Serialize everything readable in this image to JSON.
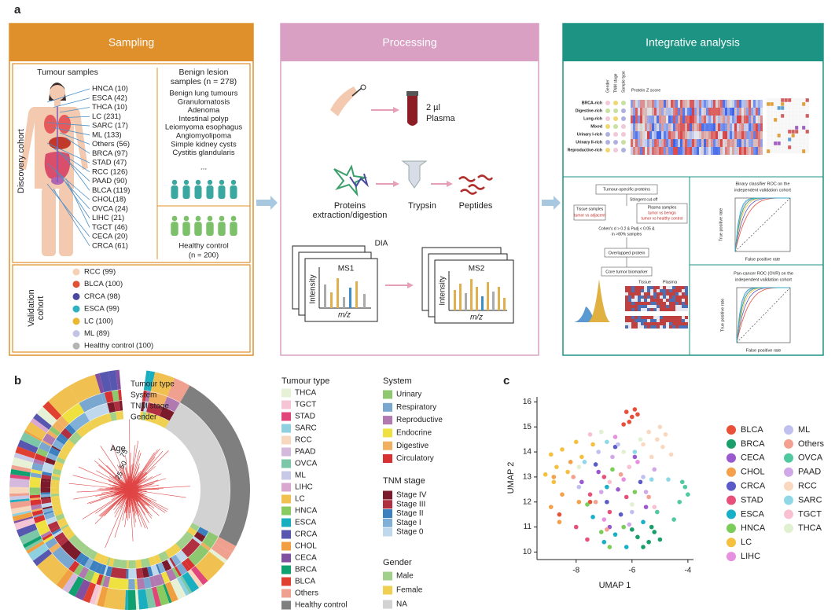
{
  "panel_a": {
    "label": "a",
    "sampling": {
      "header": "Sampling",
      "discovery_label": "Discovery cohort",
      "tumour_title": "Tumour samples",
      "tumour_samples": [
        "HNCA (10)",
        "ESCA (42)",
        "THCA (10)",
        "LC (231)",
        "SARC (17)",
        "ML (133)",
        "Others (56)",
        "BRCA (97)",
        "STAD (47)",
        "RCC (126)",
        "PAAD (90)",
        "BLCA (119)",
        "CHOL(18)",
        "OVCA (24)",
        "LIHC (21)",
        "TGCT (46)",
        "CECA (20)",
        "CRCA (61)"
      ],
      "benign_title": [
        "Benign lesion",
        "samples (n = 278)"
      ],
      "benign_samples": [
        "Benign lung tumours",
        "Granulomatosis",
        "Adenoma",
        "Intestinal polyp",
        "Leiomyoma esophagus",
        "Angiomyolipoma",
        "Simple kidney cysts",
        "Cystitis glandularis"
      ],
      "ellipsis": "...",
      "healthy": [
        "Healthy control",
        "(n = 200)"
      ],
      "validation_label": [
        "Validation",
        "cohort"
      ],
      "validation": [
        {
          "name": "RCC (99)",
          "color": "#f6cfb4"
        },
        {
          "name": "BLCA (100)",
          "color": "#e05232"
        },
        {
          "name": "CRCA (98)",
          "color": "#4b4aa0"
        },
        {
          "name": "ESCA (99)",
          "color": "#2fb1c2"
        },
        {
          "name": "LC (100)",
          "color": "#e9b830"
        },
        {
          "name": "ML (89)",
          "color": "#c3c3e6"
        },
        {
          "name": "Healthy control (100)",
          "color": "#b4b4b4"
        }
      ]
    },
    "processing": {
      "header": "Processing",
      "volume": "2 µl",
      "plasma": "Plasma",
      "proteins": [
        "Proteins",
        "extraction/digestion"
      ],
      "trypsin": "Trypsin",
      "peptides": "Peptides",
      "dia": "DIA",
      "ms1": "MS1",
      "ms2": "MS2",
      "intensity": "Intensity",
      "mz": "m/z"
    },
    "integrative": {
      "header": "Integrative analysis",
      "heatmap_title": "Protein Z score",
      "heatmap_columns": [
        "Gender",
        "TNM stage",
        "Sample type"
      ],
      "heatmap_rows": [
        "BRCA-rich",
        "Digestive-rich",
        "Lung-rich",
        "Mixed",
        "Urinary I-rich",
        "Urinary II-rich",
        "Reproductive-rich"
      ],
      "flow_start": "Tumour-specific proteins",
      "cutoff": "Stringent cut-off",
      "tissue_box": [
        "Tissue samples",
        "tumor vs adjacent"
      ],
      "plasma_box": [
        "Plasma samples",
        "tumor vs benign",
        "tumor vs healthy control"
      ],
      "criteria": [
        "Cohen's d > 0.2 & Padj < 0.05 &",
        "in >80% samples"
      ],
      "overlap": "Overlapped protein",
      "core": "Core tumor biomarker",
      "tissue": "Tissue",
      "plasma": "Plasma",
      "roc_binary_title": [
        "Binary classifier ROC on the",
        "independent validation cohort"
      ],
      "roc_pan_title": [
        "Pan-cancer ROC (OVR) on the",
        "independent validation cohort"
      ],
      "tpr": "True positive rate",
      "fpr": "False positive rate"
    }
  },
  "panel_b": {
    "label": "b",
    "rings": [
      "Tumour type",
      "System",
      "TNM stage",
      "Gender"
    ],
    "age_title": "Age",
    "age_ticks": [
      25,
      50,
      75
    ],
    "legends": [
      {
        "title": "Tumour type",
        "items": [
          {
            "name": "THCA",
            "color": "#e6f1d6"
          },
          {
            "name": "TGCT",
            "color": "#f6c5d5"
          },
          {
            "name": "STAD",
            "color": "#e0467a"
          },
          {
            "name": "SARC",
            "color": "#8ecfe0"
          },
          {
            "name": "RCC",
            "color": "#f8d7bf"
          },
          {
            "name": "PAAD",
            "color": "#d5b9dc"
          },
          {
            "name": "OVCA",
            "color": "#7cc7a7"
          },
          {
            "name": "ML",
            "color": "#c8c8e8"
          },
          {
            "name": "LIHC",
            "color": "#d9a8d1"
          },
          {
            "name": "LC",
            "color": "#f0c050"
          },
          {
            "name": "HNCA",
            "color": "#89cb60"
          },
          {
            "name": "ESCA",
            "color": "#19afc0"
          },
          {
            "name": "CRCA",
            "color": "#5757b0"
          },
          {
            "name": "CHOL",
            "color": "#f0a040"
          },
          {
            "name": "CECA",
            "color": "#8150a0"
          },
          {
            "name": "BRCA",
            "color": "#11a06f"
          },
          {
            "name": "BLCA",
            "color": "#e04030"
          },
          {
            "name": "Others",
            "color": "#f0a08f"
          },
          {
            "name": "Healthy control",
            "color": "#7f7f7f"
          }
        ]
      },
      {
        "title": "System",
        "items": [
          {
            "name": "Urinary",
            "color": "#8dc870"
          },
          {
            "name": "Respiratory",
            "color": "#7aa7d0"
          },
          {
            "name": "Reproductive",
            "color": "#b079b0"
          },
          {
            "name": "Endocrine",
            "color": "#efe140"
          },
          {
            "name": "Digestive",
            "color": "#f0b060"
          },
          {
            "name": "Circulatory",
            "color": "#d83131"
          }
        ]
      },
      {
        "title": "TNM stage",
        "items": [
          {
            "name": "Stage IV",
            "color": "#7a1a2a"
          },
          {
            "name": "Stage III",
            "color": "#b03041"
          },
          {
            "name": "Stage II",
            "color": "#3c80c0"
          },
          {
            "name": "Stage I",
            "color": "#80b0d8"
          },
          {
            "name": "Stage 0",
            "color": "#c0d8ec"
          }
        ]
      },
      {
        "title": "Gender",
        "items": [
          {
            "name": "Male",
            "color": "#a0d089"
          },
          {
            "name": "Female",
            "color": "#f0d050"
          },
          {
            "name": "NA",
            "color": "#d2d2d2"
          }
        ]
      }
    ]
  },
  "chart_data": {
    "type": "scatter",
    "panel_label": "c",
    "xlabel": "UMAP 1",
    "ylabel": "UMAP 2",
    "xlim": [
      -9.4,
      -3.8
    ],
    "ylim": [
      9.7,
      16.2
    ],
    "xticks": [
      -8,
      -6,
      -4
    ],
    "yticks": [
      10,
      11,
      12,
      13,
      14,
      15,
      16
    ],
    "series": [
      {
        "name": "BLCA",
        "color": "#e8503a",
        "x": [
          -6.2,
          -6.0,
          -5.9,
          -6.1,
          -5.8,
          -6.3,
          -7.5,
          -8.6
        ],
        "y": [
          15.6,
          15.4,
          15.7,
          15.2,
          15.5,
          15.1,
          12.0,
          11.5
        ]
      },
      {
        "name": "BRCA",
        "color": "#1a9e6a",
        "x": [
          -5.8,
          -5.4,
          -5.2,
          -5.6,
          -5.0,
          -6.0,
          -5.3
        ],
        "y": [
          10.6,
          10.4,
          10.8,
          10.2,
          10.5,
          10.9,
          11.0
        ]
      },
      {
        "name": "CECA",
        "color": "#9b59d0",
        "x": [
          -7.2,
          -6.5,
          -5.5,
          -6.8,
          -7.8,
          -5.9
        ],
        "y": [
          13.2,
          12.5,
          11.8,
          11.0,
          12.8,
          13.8
        ]
      },
      {
        "name": "CHOL",
        "color": "#f5a04a",
        "x": [
          -8.8,
          -8.5,
          -8.9,
          -8.2,
          -7.9,
          -8.6
        ],
        "y": [
          13.0,
          12.3,
          11.8,
          13.6,
          12.0,
          11.2
        ]
      },
      {
        "name": "CRCA",
        "color": "#5a5ac8",
        "x": [
          -6.9,
          -6.4,
          -7.3,
          -5.7,
          -6.6
        ],
        "y": [
          12.0,
          11.5,
          13.5,
          12.8,
          14.2
        ]
      },
      {
        "name": "STAD",
        "color": "#e8507a",
        "x": [
          -7.5,
          -6.8,
          -7.0,
          -6.2,
          -8.0,
          -7.6
        ],
        "y": [
          12.3,
          11.6,
          13.0,
          12.2,
          11.0,
          10.5
        ]
      },
      {
        "name": "ESCA",
        "color": "#18b0c8",
        "x": [
          -7.0,
          -6.6,
          -6.2,
          -5.6,
          -7.4,
          -6.9
        ],
        "y": [
          10.4,
          10.7,
          10.2,
          11.2,
          11.4,
          12.6
        ]
      },
      {
        "name": "HNCA",
        "color": "#7ccc5a",
        "x": [
          -7.1,
          -6.8,
          -6.3,
          -7.6,
          -5.9,
          -6.7
        ],
        "y": [
          10.8,
          10.2,
          11.0,
          11.9,
          12.4,
          13.3
        ]
      },
      {
        "name": "LC",
        "color": "#f5c040",
        "x": [
          -8.9,
          -8.7,
          -8.3,
          -8.5,
          -9.1,
          -8.0,
          -7.8,
          -8.8,
          -7.4
        ],
        "y": [
          13.9,
          13.4,
          13.2,
          14.1,
          13.1,
          14.4,
          13.8,
          12.8,
          14.3
        ]
      },
      {
        "name": "LIHC",
        "color": "#e890e0",
        "x": [
          -6.3,
          -5.8,
          -7.0,
          -6.6
        ],
        "y": [
          12.9,
          13.6,
          11.3,
          14.6
        ]
      },
      {
        "name": "ML",
        "color": "#c0c0f0",
        "x": [
          -6.5,
          -7.2,
          -5.6,
          -7.9,
          -6.0
        ],
        "y": [
          14.3,
          14.0,
          13.0,
          12.6,
          11.6
        ]
      },
      {
        "name": "Others",
        "color": "#f4a090",
        "x": [
          -6.4,
          -7.3,
          -5.4,
          -8.1,
          -6.9
        ],
        "y": [
          13.1,
          12.0,
          12.2,
          13.0,
          10.9
        ]
      },
      {
        "name": "OVCA",
        "color": "#50c8a0",
        "x": [
          -4.1,
          -4.0,
          -4.2,
          -4.3,
          -4.5,
          -5.1
        ],
        "y": [
          12.6,
          12.3,
          12.8,
          12.0,
          11.3,
          11.6
        ]
      },
      {
        "name": "PAAD",
        "color": "#d0a8e8",
        "x": [
          -5.5,
          -6.7,
          -7.1,
          -5.2,
          -6.1
        ],
        "y": [
          12.4,
          13.8,
          12.4,
          13.3,
          11.1
        ]
      },
      {
        "name": "RCC",
        "color": "#fad8c0",
        "x": [
          -5.4,
          -5.1,
          -4.9,
          -5.6,
          -5.0,
          -4.6,
          -5.3,
          -4.8
        ],
        "y": [
          14.8,
          14.5,
          14.2,
          14.3,
          15.0,
          13.9,
          13.8,
          14.7
        ]
      },
      {
        "name": "SARC",
        "color": "#90d8e8",
        "x": [
          -5.9,
          -6.9,
          -5.3,
          -4.7,
          -7.7
        ],
        "y": [
          14.0,
          14.4,
          12.9,
          12.9,
          13.6
        ]
      },
      {
        "name": "TGCT",
        "color": "#f8c0d0",
        "x": [
          -6.1,
          -7.5,
          -5.2,
          -6.8
        ],
        "y": [
          13.4,
          14.7,
          11.8,
          12.8
        ]
      },
      {
        "name": "THCA",
        "color": "#e0f0d0",
        "x": [
          -7.1,
          -6.3,
          -5.7,
          -7.9,
          -6.0
        ],
        "y": [
          14.8,
          14.0,
          14.5,
          13.4,
          11.9
        ]
      }
    ]
  }
}
